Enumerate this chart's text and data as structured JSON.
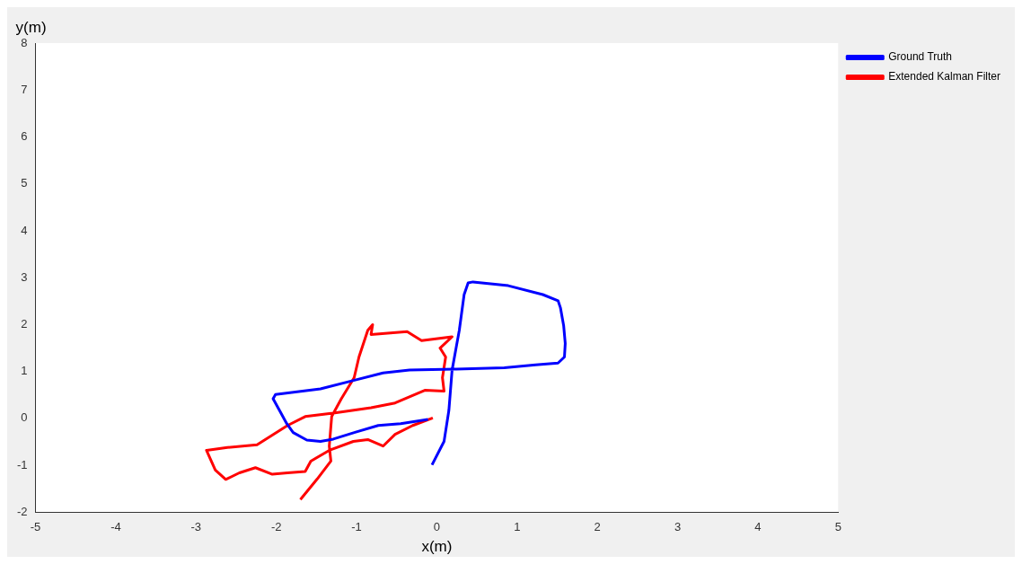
{
  "chart_data": {
    "type": "line",
    "xlabel": "x(m)",
    "ylabel": "y(m)",
    "xlim": [
      -5,
      5
    ],
    "ylim": [
      -2,
      8
    ],
    "xticks": [
      -5,
      -4,
      -3,
      -2,
      -1,
      0,
      1,
      2,
      3,
      4,
      5
    ],
    "yticks": [
      -2,
      -1,
      0,
      1,
      2,
      3,
      4,
      5,
      6,
      7,
      8
    ],
    "grid": false,
    "legend": "top right",
    "marker": "none",
    "line_style": "solid",
    "series": [
      {
        "name": "Ground Truth",
        "color": "#0000ff",
        "x": [
          -0.06,
          0.09,
          0.15,
          0.19,
          0.28,
          0.34,
          0.39,
          0.45,
          0.89,
          1.32,
          1.51,
          1.54,
          1.58,
          1.6,
          1.59,
          1.51,
          1.23,
          0.84,
          0.22,
          -0.34,
          -0.67,
          -1.06,
          -1.45,
          -2.01,
          -2.04,
          -1.96,
          -1.87,
          -1.79,
          -1.62,
          -1.45,
          -1.29,
          -1.01,
          -0.73,
          -0.45,
          -0.11
        ],
        "values": [
          -0.99,
          -0.49,
          0.17,
          1.03,
          1.88,
          2.64,
          2.89,
          2.91,
          2.83,
          2.64,
          2.51,
          2.36,
          1.98,
          1.6,
          1.31,
          1.18,
          1.14,
          1.08,
          1.05,
          1.03,
          0.97,
          0.8,
          0.63,
          0.51,
          0.42,
          0.17,
          -0.11,
          -0.3,
          -0.46,
          -0.49,
          -0.44,
          -0.29,
          -0.15,
          -0.11,
          -0.02
        ]
      },
      {
        "name": "Extended Kalman Filter",
        "color": "#ff0000",
        "x": [
          -0.05,
          -0.3,
          -0.52,
          -0.67,
          -0.86,
          -1.04,
          -1.34,
          -1.57,
          -1.64,
          -1.86,
          -2.05,
          -2.26,
          -2.46,
          -2.63,
          -2.76,
          -2.87,
          -2.61,
          -2.24,
          -1.86,
          -1.64,
          -1.27,
          -0.82,
          -0.52,
          -0.15,
          0.09,
          0.07,
          0.11,
          0.04,
          0.19,
          -0.19,
          -0.37,
          -0.82,
          -0.8,
          -0.86,
          -0.97,
          -1.03,
          -1.19,
          -1.31,
          -1.34,
          -1.32,
          -1.49,
          -1.7
        ],
        "values": [
          0.01,
          -0.15,
          -0.34,
          -0.59,
          -0.45,
          -0.49,
          -0.68,
          -0.91,
          -1.13,
          -1.16,
          -1.19,
          -1.05,
          -1.16,
          -1.3,
          -1.1,
          -0.68,
          -0.62,
          -0.56,
          -0.15,
          0.04,
          0.12,
          0.23,
          0.33,
          0.6,
          0.58,
          0.87,
          1.31,
          1.5,
          1.74,
          1.66,
          1.85,
          1.79,
          2.0,
          1.88,
          1.31,
          0.87,
          0.42,
          0.04,
          -0.59,
          -0.91,
          -1.29,
          -1.73
        ]
      }
    ]
  }
}
